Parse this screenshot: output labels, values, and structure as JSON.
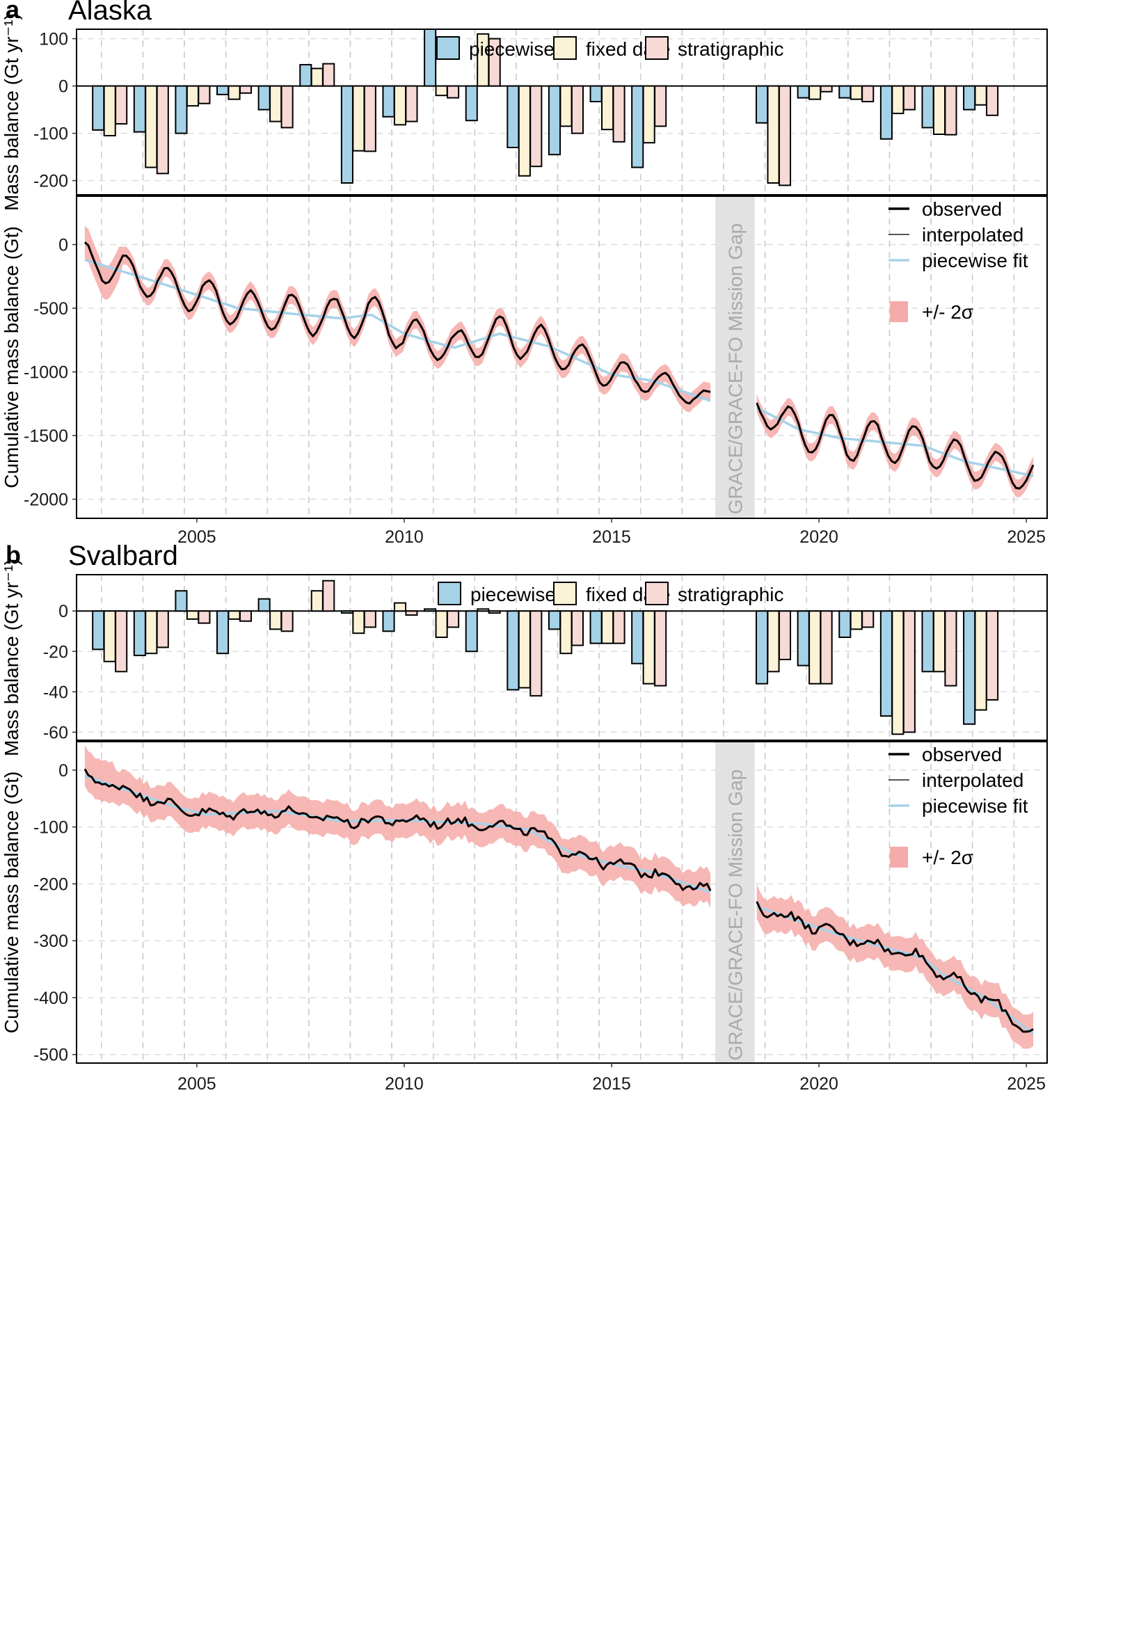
{
  "chart_data": [
    {
      "panel_label": "a",
      "title": "Alaska",
      "type": "bar",
      "ylabel": "Mass balance (Gt yr⁻¹)",
      "ylim": [
        -230,
        120
      ],
      "yticks": [
        100,
        0,
        -100,
        -200
      ],
      "legend": {
        "position": "top-right"
      },
      "series": [
        {
          "name": "piecewise fit",
          "color": "#a6d2e8"
        },
        {
          "name": "fixed date",
          "color": "#fcf3d6"
        },
        {
          "name": "stratigraphic",
          "color": "#f7dad6"
        }
      ],
      "bars": [
        {
          "x": 2003,
          "values": [
            -93,
            -105,
            -80
          ]
        },
        {
          "x": 2004,
          "values": [
            -97,
            -172,
            -185
          ]
        },
        {
          "x": 2005,
          "values": [
            -100,
            -42,
            -37
          ]
        },
        {
          "x": 2006,
          "values": [
            -18,
            -28,
            -15
          ]
        },
        {
          "x": 2007,
          "values": [
            -50,
            -75,
            -88
          ]
        },
        {
          "x": 2008,
          "values": [
            45,
            37,
            47
          ]
        },
        {
          "x": 2009,
          "values": [
            -205,
            -137,
            -138
          ]
        },
        {
          "x": 2010,
          "values": [
            -65,
            -82,
            -75
          ]
        },
        {
          "x": 2011,
          "values": [
            120,
            -20,
            -25
          ]
        },
        {
          "x": 2012,
          "values": [
            -73,
            110,
            100
          ]
        },
        {
          "x": 2013,
          "values": [
            -130,
            -190,
            -170
          ]
        },
        {
          "x": 2014,
          "values": [
            -145,
            -85,
            -100
          ]
        },
        {
          "x": 2015,
          "values": [
            -33,
            -92,
            -118
          ]
        },
        {
          "x": 2016,
          "values": [
            -172,
            -120,
            -85
          ]
        },
        {
          "x": 2019,
          "values": [
            -78,
            -205,
            -210
          ]
        },
        {
          "x": 2020,
          "values": [
            -25,
            -28,
            -12
          ]
        },
        {
          "x": 2021,
          "values": [
            -25,
            -28,
            -33
          ]
        },
        {
          "x": 2022,
          "values": [
            -112,
            -58,
            -50
          ]
        },
        {
          "x": 2023,
          "values": [
            -88,
            -102,
            -103
          ]
        },
        {
          "x": 2024,
          "values": [
            -50,
            -40,
            -62
          ]
        }
      ],
      "lower": {
        "type": "line",
        "ylabel": "Cumulative mass balance (Gt)",
        "ylim": [
          -2150,
          380
        ],
        "yticks": [
          0,
          -500,
          -1000,
          -1500,
          -2000
        ],
        "xlim": [
          2002.1,
          2025.5
        ],
        "xticks": [
          2005,
          2010,
          2015,
          2020,
          2025
        ],
        "legend_entries": [
          "observed",
          "interpolated",
          "piecewise fit",
          "+/- 2σ"
        ],
        "gap_label": "GRACE/GRACE-FO Mission Gap",
        "gap": [
          2017.5,
          2018.45
        ],
        "trend": [
          [
            2002.3,
            -120
          ],
          [
            2004,
            -290
          ],
          [
            2006,
            -500
          ],
          [
            2007.5,
            -550
          ],
          [
            2008.5,
            -580
          ],
          [
            2009.2,
            -550
          ],
          [
            2010,
            -700
          ],
          [
            2011.2,
            -810
          ],
          [
            2012.3,
            -700
          ],
          [
            2013.5,
            -800
          ],
          [
            2015,
            -1020
          ],
          [
            2016,
            -1070
          ],
          [
            2017.4,
            -1230
          ],
          [
            2018.5,
            -1280
          ],
          [
            2019.5,
            -1450
          ],
          [
            2020.5,
            -1520
          ],
          [
            2021.5,
            -1550
          ],
          [
            2022.5,
            -1580
          ],
          [
            2023.5,
            -1700
          ],
          [
            2025.2,
            -1820
          ]
        ],
        "amplitude": [
          [
            2002.3,
            130
          ],
          [
            2009,
            160
          ],
          [
            2011,
            120
          ],
          [
            2013,
            150
          ],
          [
            2017.4,
            70
          ],
          [
            2018.5,
            90
          ],
          [
            2020,
            180
          ],
          [
            2025.2,
            120
          ]
        ],
        "band_halfwidth": 70,
        "color_observed": "#000000",
        "color_fit": "#a6d2e8",
        "color_band": "#f4aaa8"
      }
    },
    {
      "panel_label": "b",
      "title": "Svalbard",
      "type": "bar",
      "ylabel": "Mass balance (Gt yr⁻¹)",
      "ylim": [
        -64,
        18
      ],
      "yticks": [
        0,
        -20,
        -40,
        -60
      ],
      "legend": {
        "position": "top-right"
      },
      "series": [
        {
          "name": "piecewise fit",
          "color": "#a6d2e8"
        },
        {
          "name": "fixed date",
          "color": "#fcf3d6"
        },
        {
          "name": "stratigraphic",
          "color": "#f7dad6"
        }
      ],
      "bars": [
        {
          "x": 2003,
          "values": [
            -19,
            -25,
            -30
          ]
        },
        {
          "x": 2004,
          "values": [
            -22,
            -21,
            -18
          ]
        },
        {
          "x": 2005,
          "values": [
            10,
            -4,
            -6
          ]
        },
        {
          "x": 2006,
          "values": [
            -21,
            -4,
            -5
          ]
        },
        {
          "x": 2007,
          "values": [
            6,
            -9,
            -10
          ]
        },
        {
          "x": 2008,
          "values": [
            0,
            10,
            15
          ]
        },
        {
          "x": 2009,
          "values": [
            -1,
            -11,
            -8
          ]
        },
        {
          "x": 2010,
          "values": [
            -10,
            4,
            -2
          ]
        },
        {
          "x": 2011,
          "values": [
            1,
            -13,
            -8
          ]
        },
        {
          "x": 2012,
          "values": [
            -20,
            1,
            -1
          ]
        },
        {
          "x": 2013,
          "values": [
            -39,
            -38,
            -42
          ]
        },
        {
          "x": 2014,
          "values": [
            -9,
            -21,
            -17
          ]
        },
        {
          "x": 2015,
          "values": [
            -16,
            -16,
            -16
          ]
        },
        {
          "x": 2016,
          "values": [
            -26,
            -36,
            -37
          ]
        },
        {
          "x": 2019,
          "values": [
            -36,
            -30,
            -24
          ]
        },
        {
          "x": 2020,
          "values": [
            -27,
            -36,
            -36
          ]
        },
        {
          "x": 2021,
          "values": [
            -13,
            -9,
            -8
          ]
        },
        {
          "x": 2022,
          "values": [
            -52,
            -61,
            -60
          ]
        },
        {
          "x": 2023,
          "values": [
            -30,
            -30,
            -37
          ]
        },
        {
          "x": 2024,
          "values": [
            -56,
            -49,
            -44
          ]
        }
      ],
      "lower": {
        "type": "line",
        "ylabel": "Cumulative mass balance (Gt)",
        "ylim": [
          -515,
          50
        ],
        "yticks": [
          0,
          -100,
          -200,
          -300,
          -400,
          -500
        ],
        "xlim": [
          2002.1,
          2025.5
        ],
        "xticks": [
          2005,
          2010,
          2015,
          2020,
          2025
        ],
        "legend_entries": [
          "observed",
          "interpolated",
          "piecewise fit",
          "+/- 2σ"
        ],
        "gap_label": "GRACE/GRACE-FO Mission Gap",
        "gap": [
          2017.5,
          2018.45
        ],
        "trend": [
          [
            2002.3,
            -10
          ],
          [
            2003.5,
            -40
          ],
          [
            2004.5,
            -65
          ],
          [
            2005.2,
            -78
          ],
          [
            2007,
            -72
          ],
          [
            2008.5,
            -90
          ],
          [
            2010,
            -88
          ],
          [
            2012,
            -95
          ],
          [
            2013,
            -105
          ],
          [
            2014,
            -145
          ],
          [
            2015,
            -165
          ],
          [
            2016,
            -180
          ],
          [
            2017.4,
            -215
          ],
          [
            2018.5,
            -240
          ],
          [
            2019.5,
            -265
          ],
          [
            2020.5,
            -290
          ],
          [
            2021.5,
            -310
          ],
          [
            2022.5,
            -330
          ],
          [
            2023,
            -360
          ],
          [
            2024,
            -400
          ],
          [
            2025.2,
            -465
          ]
        ],
        "amplitude": [
          [
            2002.3,
            6
          ],
          [
            2025.2,
            8
          ]
        ],
        "band_halfwidth": 30,
        "color_observed": "#000000",
        "color_fit": "#a6d2e8",
        "color_band": "#f4aaa8"
      }
    }
  ]
}
